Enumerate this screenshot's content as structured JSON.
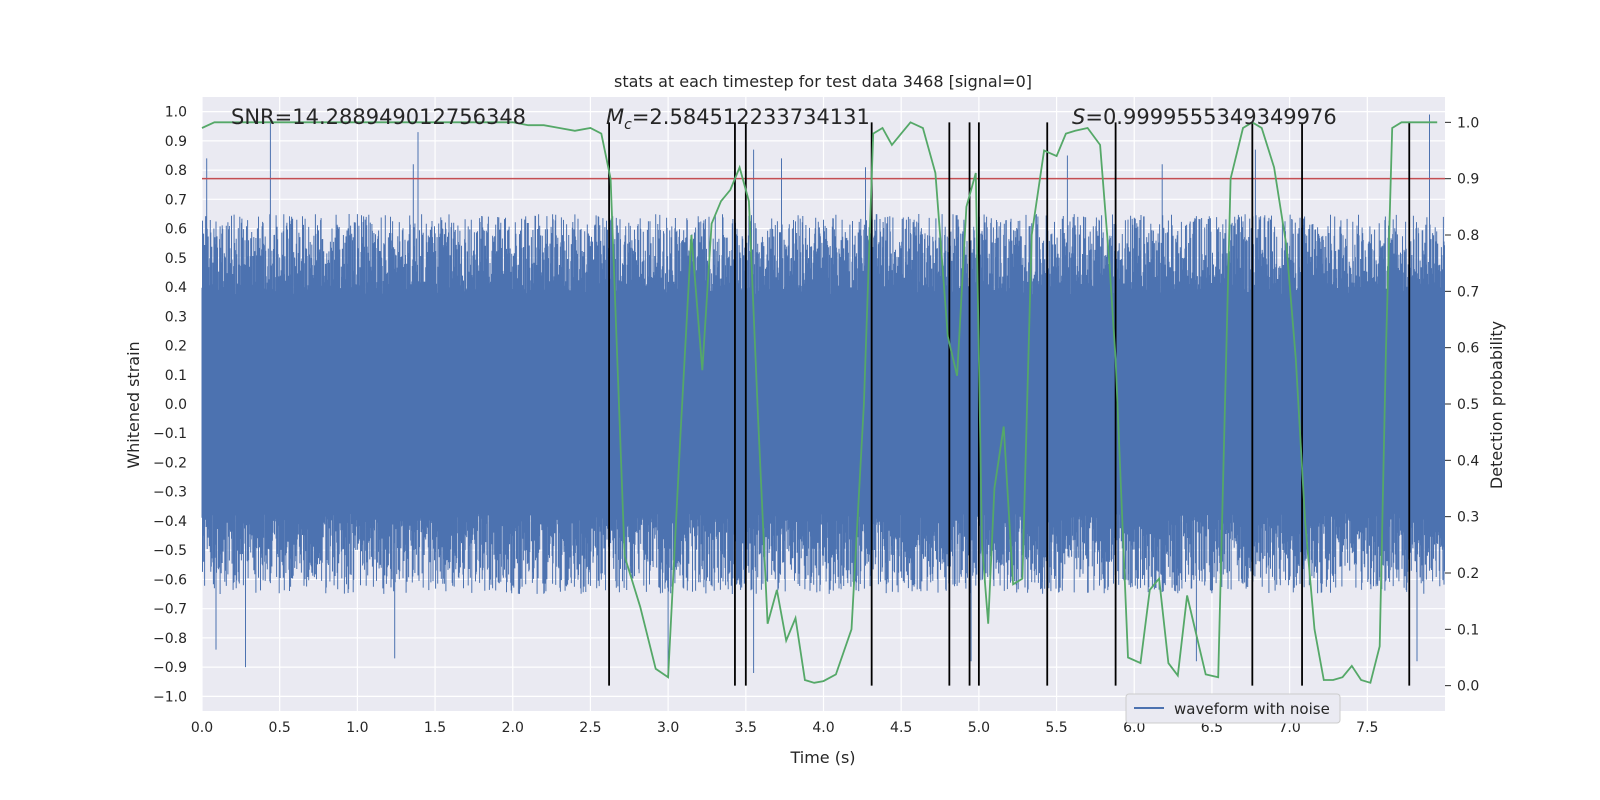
{
  "chart_data": {
    "type": "line",
    "title": "stats at each timestep for test data 3468 [signal=0]",
    "xlabel": "Time (s)",
    "ylabel_left": "Whitened strain",
    "ylabel_right": "Detection probability",
    "xlim": [
      0.0,
      8.0
    ],
    "ylim_left": [
      -1.05,
      1.05
    ],
    "ylim_right": [
      -0.045,
      1.045
    ],
    "x_ticks": [
      0.0,
      0.5,
      1.0,
      1.5,
      2.0,
      2.5,
      3.0,
      3.5,
      4.0,
      4.5,
      5.0,
      5.5,
      6.0,
      6.5,
      7.0,
      7.5
    ],
    "x_tick_labels": [
      "0.0",
      "0.5",
      "1.0",
      "1.5",
      "2.0",
      "2.5",
      "3.0",
      "3.5",
      "4.0",
      "4.5",
      "5.0",
      "5.5",
      "6.0",
      "6.5",
      "7.0",
      "7.5"
    ],
    "y_ticks_left": [
      1.0,
      0.9,
      0.8,
      0.7,
      0.6,
      0.5,
      0.4,
      0.3,
      0.2,
      0.1,
      0.0,
      -0.1,
      -0.2,
      -0.3,
      -0.4,
      -0.5,
      -0.6,
      -0.7,
      -0.8,
      -0.9,
      -1.0
    ],
    "y_tick_labels_left": [
      "1.0",
      "0.9",
      "0.8",
      "0.7",
      "0.6",
      "0.5",
      "0.4",
      "0.3",
      "0.2",
      "0.1",
      "0.0",
      "−0.1",
      "−0.2",
      "−0.3",
      "−0.4",
      "−0.5",
      "−0.6",
      "−0.7",
      "−0.8",
      "−0.9",
      "−1.0"
    ],
    "y_ticks_right": [
      1.0,
      0.9,
      0.8,
      0.7,
      0.6,
      0.5,
      0.4,
      0.3,
      0.2,
      0.1,
      0.0
    ],
    "y_tick_labels_right": [
      "1.0",
      "0.9",
      "0.8",
      "0.7",
      "0.6",
      "0.5",
      "0.4",
      "0.3",
      "0.2",
      "0.1",
      "0.0"
    ],
    "annotations": {
      "snr": "SNR=14.288949012756348",
      "mc_symbol": "M",
      "mc_sub": "c",
      "mc_value": "=2.584512233734131",
      "s_symbol": "S",
      "s_value": "=0.9999555349349976"
    },
    "legend": {
      "label": "waveform with noise",
      "placement": "lower-center-right"
    },
    "threshold": {
      "value": 0.9,
      "axis": "right",
      "color": "#c44e52"
    },
    "waveform": {
      "name": "waveform with noise",
      "color": "#4c72b0",
      "duration": 8.0,
      "envelope": [
        0.5,
        -0.5
      ],
      "spikes_up": [
        [
          0.03,
          0.84
        ],
        [
          0.44,
          0.97
        ],
        [
          1.39,
          0.93
        ],
        [
          1.36,
          0.82
        ],
        [
          3.55,
          0.87
        ],
        [
          3.73,
          0.84
        ],
        [
          4.27,
          0.81
        ],
        [
          5.57,
          0.85
        ],
        [
          6.18,
          0.82
        ],
        [
          6.78,
          0.87
        ],
        [
          7.9,
          0.99
        ]
      ],
      "spikes_down": [
        [
          0.28,
          -0.9
        ],
        [
          0.09,
          -0.84
        ],
        [
          1.24,
          -0.87
        ],
        [
          3.0,
          -0.92
        ],
        [
          3.55,
          -0.92
        ],
        [
          4.95,
          -0.88
        ],
        [
          6.4,
          -0.88
        ],
        [
          7.82,
          -0.88
        ]
      ]
    },
    "detection_probability": {
      "name": "Detection probability",
      "color": "#55a868",
      "x": [
        0.0,
        0.08,
        0.2,
        0.4,
        0.6,
        0.8,
        1.0,
        1.2,
        1.4,
        1.6,
        1.8,
        2.0,
        2.1,
        2.2,
        2.3,
        2.4,
        2.5,
        2.57,
        2.63,
        2.72,
        2.82,
        2.92,
        3.0,
        3.08,
        3.15,
        3.22,
        3.28,
        3.34,
        3.4,
        3.46,
        3.52,
        3.58,
        3.64,
        3.7,
        3.76,
        3.82,
        3.88,
        3.94,
        4.0,
        4.08,
        4.18,
        4.26,
        4.32,
        4.38,
        4.44,
        4.5,
        4.56,
        4.64,
        4.72,
        4.8,
        4.86,
        4.92,
        4.98,
        5.02,
        5.06,
        5.1,
        5.16,
        5.22,
        5.28,
        5.34,
        5.42,
        5.5,
        5.56,
        5.62,
        5.7,
        5.78,
        5.84,
        5.88,
        5.96,
        6.04,
        6.1,
        6.16,
        6.22,
        6.28,
        6.34,
        6.4,
        6.46,
        6.54,
        6.62,
        6.7,
        6.76,
        6.82,
        6.9,
        6.98,
        7.04,
        7.1,
        7.16,
        7.22,
        7.28,
        7.34,
        7.4,
        7.46,
        7.52,
        7.58,
        7.62,
        7.66,
        7.72,
        7.76,
        7.8,
        7.84,
        7.88,
        7.95
      ],
      "y": [
        0.99,
        1.0,
        1.0,
        1.0,
        1.0,
        1.0,
        1.0,
        1.0,
        1.0,
        1.0,
        1.0,
        1.0,
        0.995,
        0.995,
        0.99,
        0.985,
        0.99,
        0.98,
        0.9,
        0.23,
        0.14,
        0.03,
        0.015,
        0.45,
        0.8,
        0.56,
        0.82,
        0.86,
        0.88,
        0.92,
        0.86,
        0.47,
        0.11,
        0.17,
        0.08,
        0.12,
        0.01,
        0.005,
        0.008,
        0.02,
        0.1,
        0.5,
        0.98,
        0.99,
        0.96,
        0.98,
        1.0,
        0.99,
        0.91,
        0.62,
        0.55,
        0.85,
        0.91,
        0.25,
        0.11,
        0.35,
        0.46,
        0.18,
        0.19,
        0.8,
        0.95,
        0.94,
        0.98,
        0.985,
        0.99,
        0.96,
        0.75,
        0.58,
        0.05,
        0.04,
        0.17,
        0.19,
        0.04,
        0.018,
        0.16,
        0.09,
        0.02,
        0.015,
        0.9,
        0.99,
        1.0,
        0.99,
        0.92,
        0.78,
        0.58,
        0.29,
        0.1,
        0.01,
        0.01,
        0.015,
        0.035,
        0.01,
        0.005,
        0.07,
        0.6,
        0.99,
        1.0,
        1.0,
        1.0,
        1.0,
        1.0,
        1.0
      ]
    },
    "trigger_lines": [
      2.62,
      3.43,
      3.5,
      4.31,
      4.81,
      4.94,
      5.0,
      5.44,
      5.88,
      6.76,
      7.08,
      7.77
    ],
    "trigger_color": "#000000"
  }
}
